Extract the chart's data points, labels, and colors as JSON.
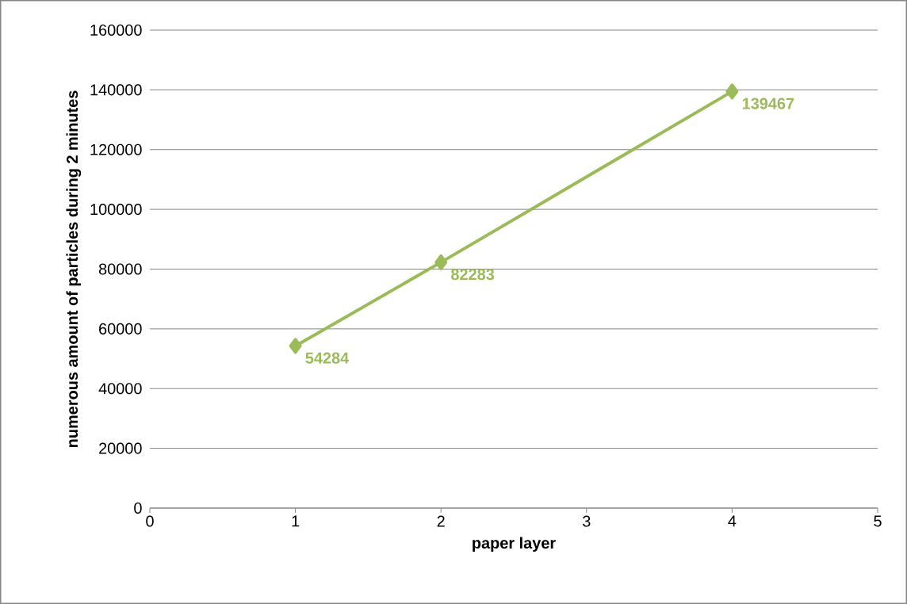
{
  "chart_data": {
    "type": "line",
    "xlabel": "paper layer",
    "ylabel": "numerous amount of particles during 2 minutes",
    "x": [
      1,
      2,
      4
    ],
    "series": [
      {
        "color": "#9bbb59",
        "values": [
          54284,
          82283,
          139467
        ]
      }
    ],
    "xlim": [
      0,
      5
    ],
    "xticks": [
      0,
      1,
      2,
      3,
      4,
      5
    ],
    "ylim": [
      0,
      160000
    ],
    "yticks": [
      0,
      20000,
      40000,
      60000,
      80000,
      100000,
      120000,
      140000,
      160000
    ],
    "grid": "y",
    "marker": "diamond",
    "line_style": "solid",
    "data_labels": true
  }
}
